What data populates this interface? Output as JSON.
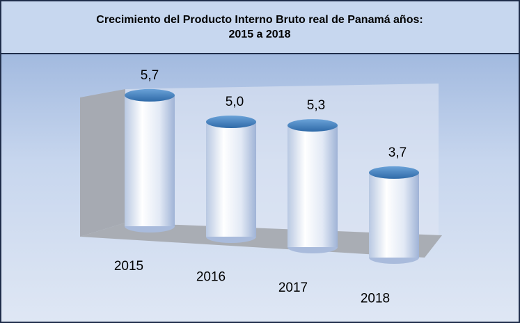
{
  "chart_data": {
    "type": "cylinder",
    "title": "Crecimiento del Producto Interno Bruto real de Panamá años:",
    "subtitle": "2015 a 2018",
    "categories": [
      "2015",
      "2016",
      "2017",
      "2018"
    ],
    "values": [
      5.7,
      5.0,
      5.3,
      3.7
    ],
    "value_labels": [
      "5,7",
      "5,0",
      "5,3",
      "3,7"
    ],
    "color": "#3d78b8"
  }
}
